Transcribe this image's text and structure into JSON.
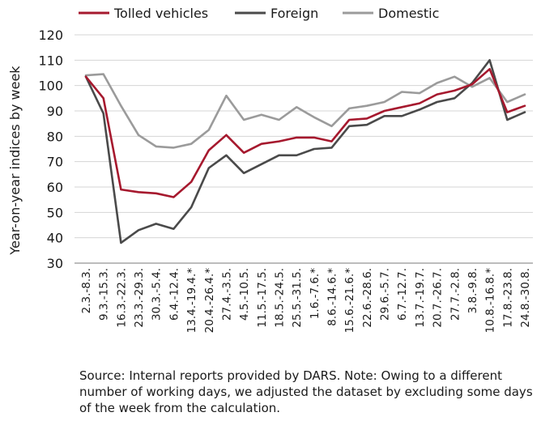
{
  "chart_data": {
    "type": "line",
    "title": "",
    "xlabel": "",
    "ylabel": "Year-on-year indices by week",
    "ylim": [
      30,
      120
    ],
    "yticks": [
      30,
      40,
      50,
      60,
      70,
      80,
      90,
      100,
      110,
      120
    ],
    "grid": "horizontal",
    "legend": "top",
    "categories": [
      "2.3.-8.3.",
      "9.3.-15.3.",
      "16.3.-22.3.",
      "23.3.-29.3.",
      "30.3.-5.4.",
      "6.4.-12.4.",
      "13.4.-19.4.*",
      "20.4.-26.4.*",
      "27.4.-3.5.",
      "4.5.-10.5.",
      "11.5.-17.5.",
      "18.5.-24.5.",
      "25.5.-31.5.",
      "1.6.-7.6.*",
      "8.6.-14.6.*",
      "15.6.-21.6.*",
      "22.6.-28.6.",
      "29.6.-5.7.",
      "6.7.-12.7.",
      "13.7.-19.7.",
      "20.7.-26.7.",
      "27.7.-2.8.",
      "3.8.-9.8.",
      "10.8.-16.8.*",
      "17.8.-23.8.",
      "24.8.-30.8."
    ],
    "series": [
      {
        "name": "Tolled vehicles",
        "color": "#a6192e",
        "values": [
          103.5,
          95,
          59,
          58,
          57.5,
          56,
          62,
          74.5,
          80.5,
          73.5,
          77,
          78,
          79.5,
          79.5,
          78,
          86.5,
          87,
          90,
          91.5,
          93,
          96.5,
          98,
          100.5,
          106.5,
          89.5,
          92
        ]
      },
      {
        "name": "Foreign",
        "color": "#4a4a4a",
        "values": [
          103.5,
          89,
          38,
          43,
          45.5,
          43.5,
          52,
          67.5,
          72.5,
          65.5,
          69,
          72.5,
          72.5,
          75,
          75.5,
          84,
          84.5,
          88,
          88,
          90.5,
          93.5,
          95,
          101,
          110,
          86.5,
          89.5
        ]
      },
      {
        "name": "Domestic",
        "color": "#9b9b9b",
        "values": [
          104,
          104.5,
          92,
          80.5,
          76,
          75.5,
          77,
          82.5,
          96,
          86.5,
          88.5,
          86.5,
          91.5,
          87.5,
          84,
          91,
          92,
          93.5,
          97.5,
          97,
          101,
          103.5,
          99.5,
          103,
          93.5,
          96.5
        ]
      }
    ]
  },
  "source_note": "Source: Internal reports provided by DARS. Note: Owing to a different number of working days, we adjusted the dataset by excluding some days of the week from the calculation."
}
